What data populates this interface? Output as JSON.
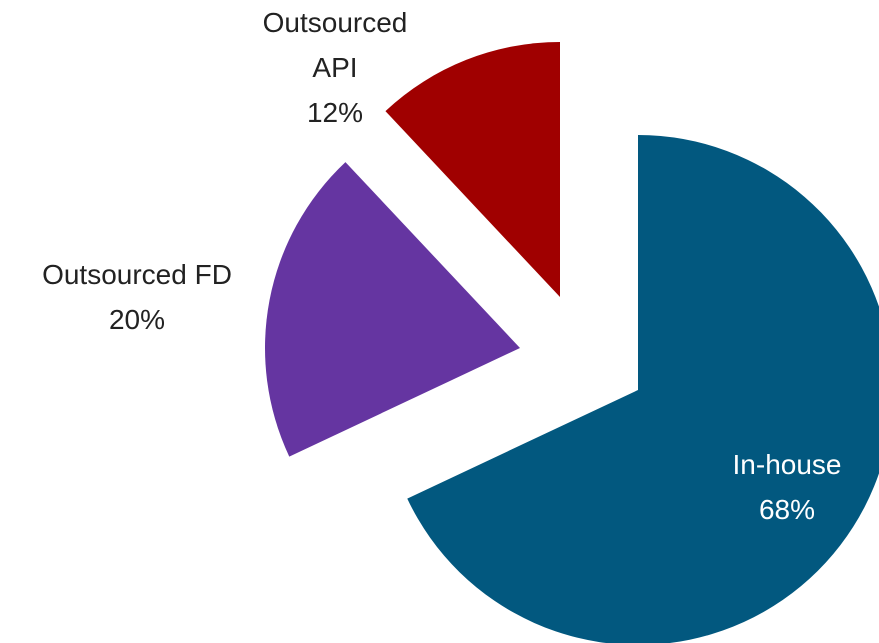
{
  "chart_data": {
    "type": "pie",
    "categories": [
      "In-house",
      "Outsourced FD",
      "Outsourced API"
    ],
    "values": [
      68,
      20,
      12
    ],
    "value_labels": [
      "68%",
      "20%",
      "12%"
    ],
    "colors": [
      "#02587f",
      "#6535a1",
      "#a00000"
    ]
  }
}
